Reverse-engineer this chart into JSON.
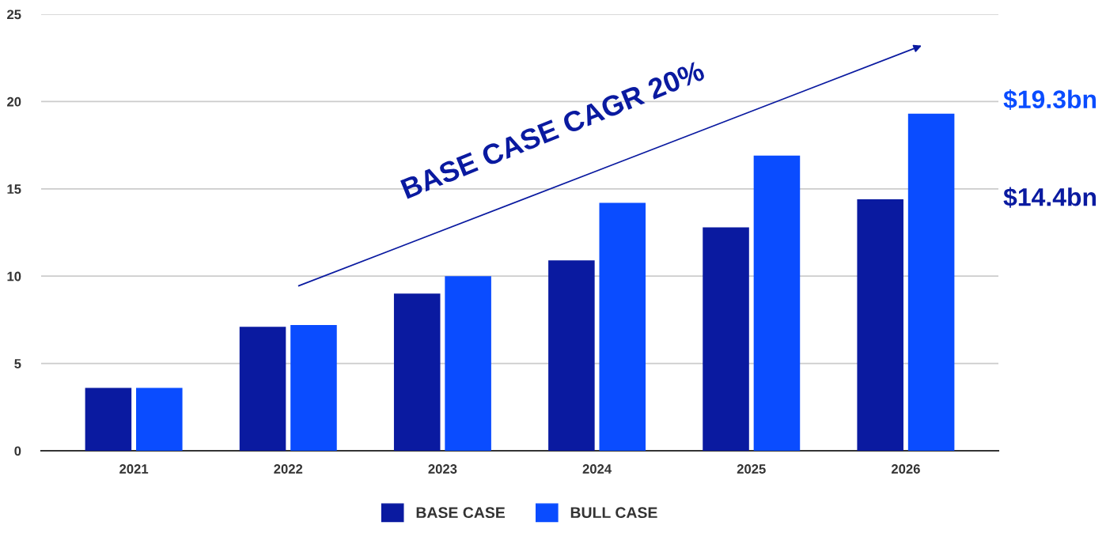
{
  "chart_data": {
    "type": "bar",
    "categories": [
      "2021",
      "2022",
      "2023",
      "2024",
      "2025",
      "2026"
    ],
    "series": [
      {
        "name": "BASE CASE",
        "color": "#0a1aa0",
        "values": [
          3.6,
          7.1,
          9.0,
          10.9,
          12.8,
          14.4
        ]
      },
      {
        "name": "BULL CASE",
        "color": "#0a4cff",
        "values": [
          3.6,
          7.2,
          10.0,
          14.2,
          16.9,
          19.3
        ]
      }
    ],
    "ylim": [
      0,
      25
    ],
    "yticks": [
      0,
      5,
      10,
      15,
      20,
      25
    ],
    "grid": "y",
    "legend": "bottom",
    "annotations": [
      "$19.3bn",
      "$14.4bn",
      "BASE CASE CAGR 20%"
    ]
  }
}
